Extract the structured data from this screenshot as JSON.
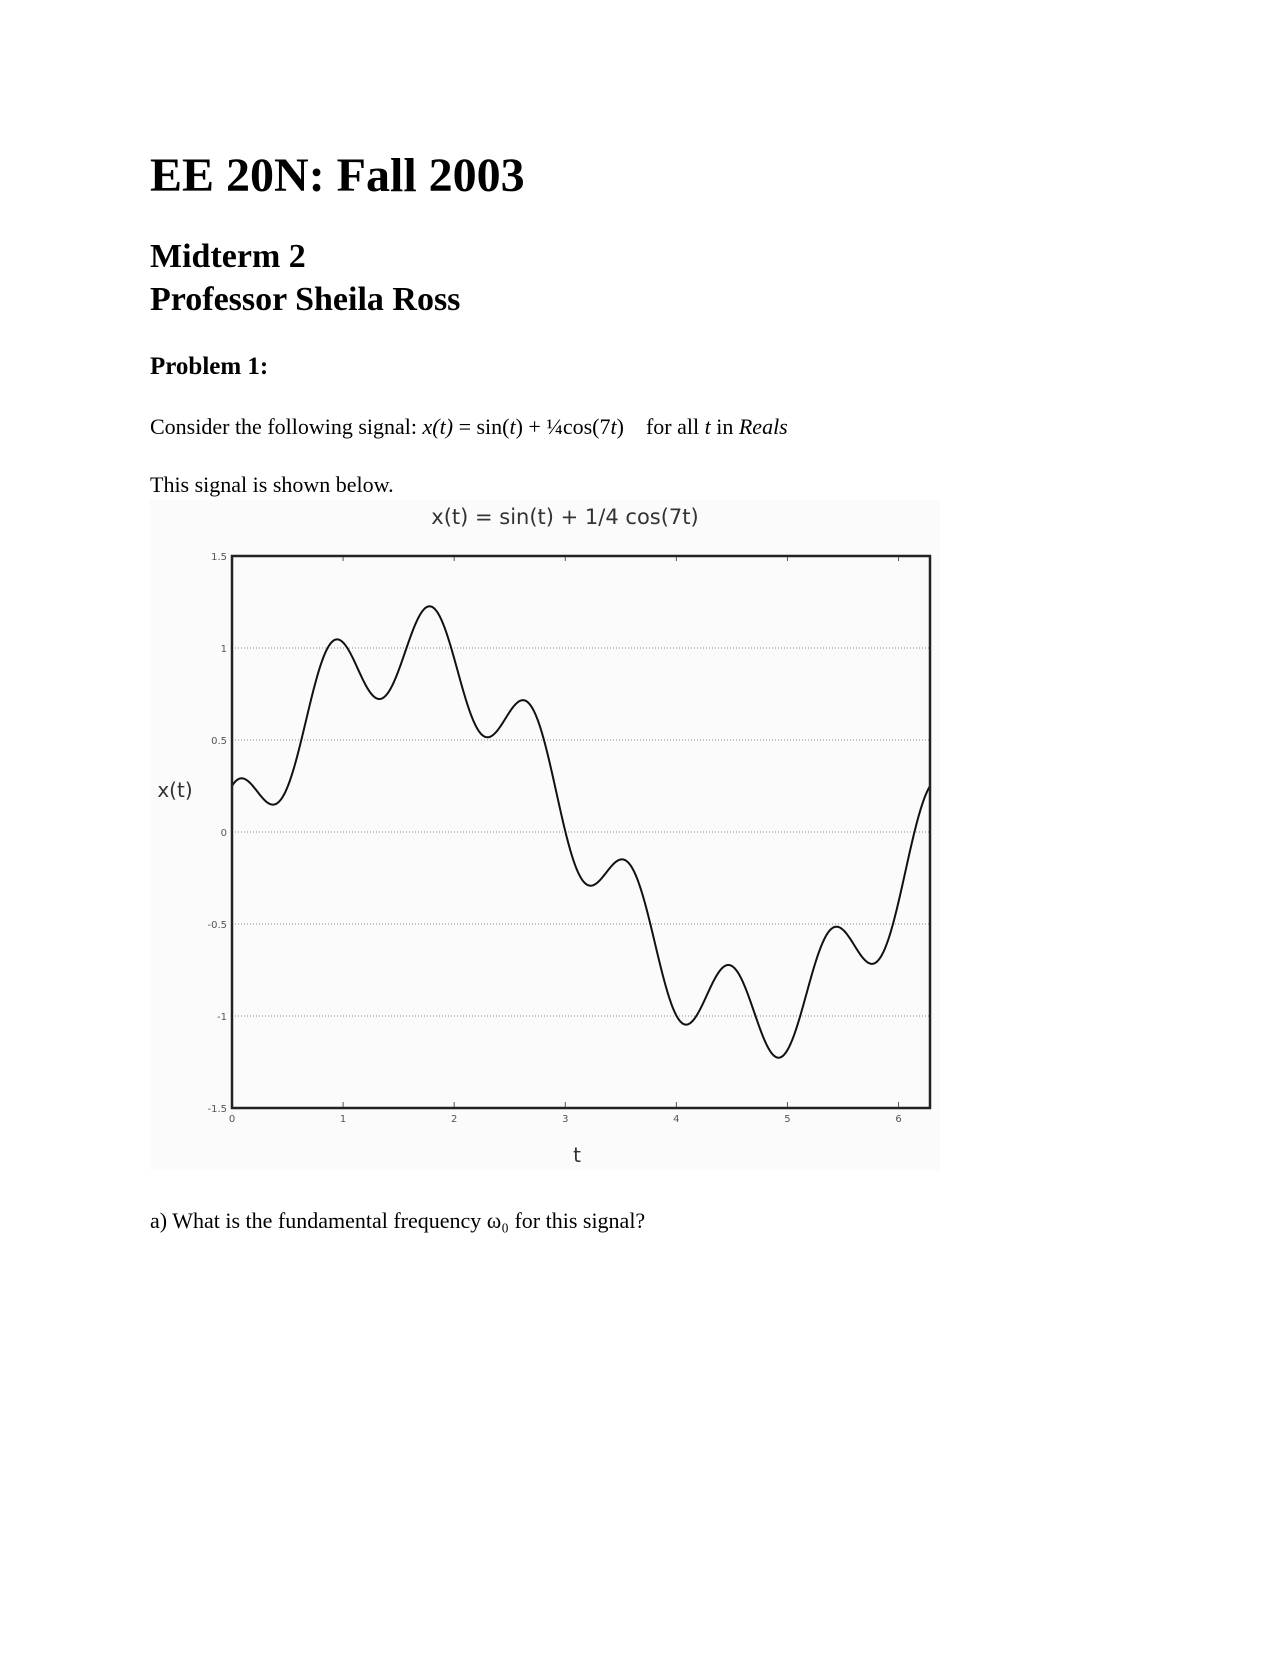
{
  "document": {
    "title": "EE 20N: Fall 2003",
    "subtitle_line1": "Midterm 2",
    "subtitle_line2": "Professor Sheila Ross",
    "problem_heading": "Problem 1:",
    "statement": {
      "prefix": "Consider the following signal: ",
      "lhs": "x(t)",
      "eq": " = sin(",
      "t1": "t",
      "mid": ") + ¼cos(7",
      "t2": "t",
      "end": ")",
      "gap": "    for all ",
      "t3": "t",
      "in": " in ",
      "reals": "Reals"
    },
    "shown_below": "This signal is shown below.",
    "question_a": "a) What is the fundamental frequency ω₀ for this signal?"
  },
  "chart_data": {
    "type": "line",
    "title": "x(t) = sin(t) + 1/4 cos(7t)",
    "xlabel": "t",
    "ylabel": "x(t)",
    "xlim": [
      0,
      6.2832
    ],
    "ylim": [
      -1.5,
      1.5
    ],
    "xticks": [
      "0",
      "1",
      "2",
      "3",
      "4",
      "5",
      "6"
    ],
    "yticks": [
      "1.5",
      "1",
      "0.5",
      "0",
      "-0.5",
      "-1",
      "-1.5"
    ],
    "grid": "horizontal dotted",
    "series": [
      {
        "expression": "sin(t) + 0.25*cos(7*t)",
        "t_range": [
          0,
          6.2832
        ],
        "color": "#111111"
      }
    ]
  }
}
